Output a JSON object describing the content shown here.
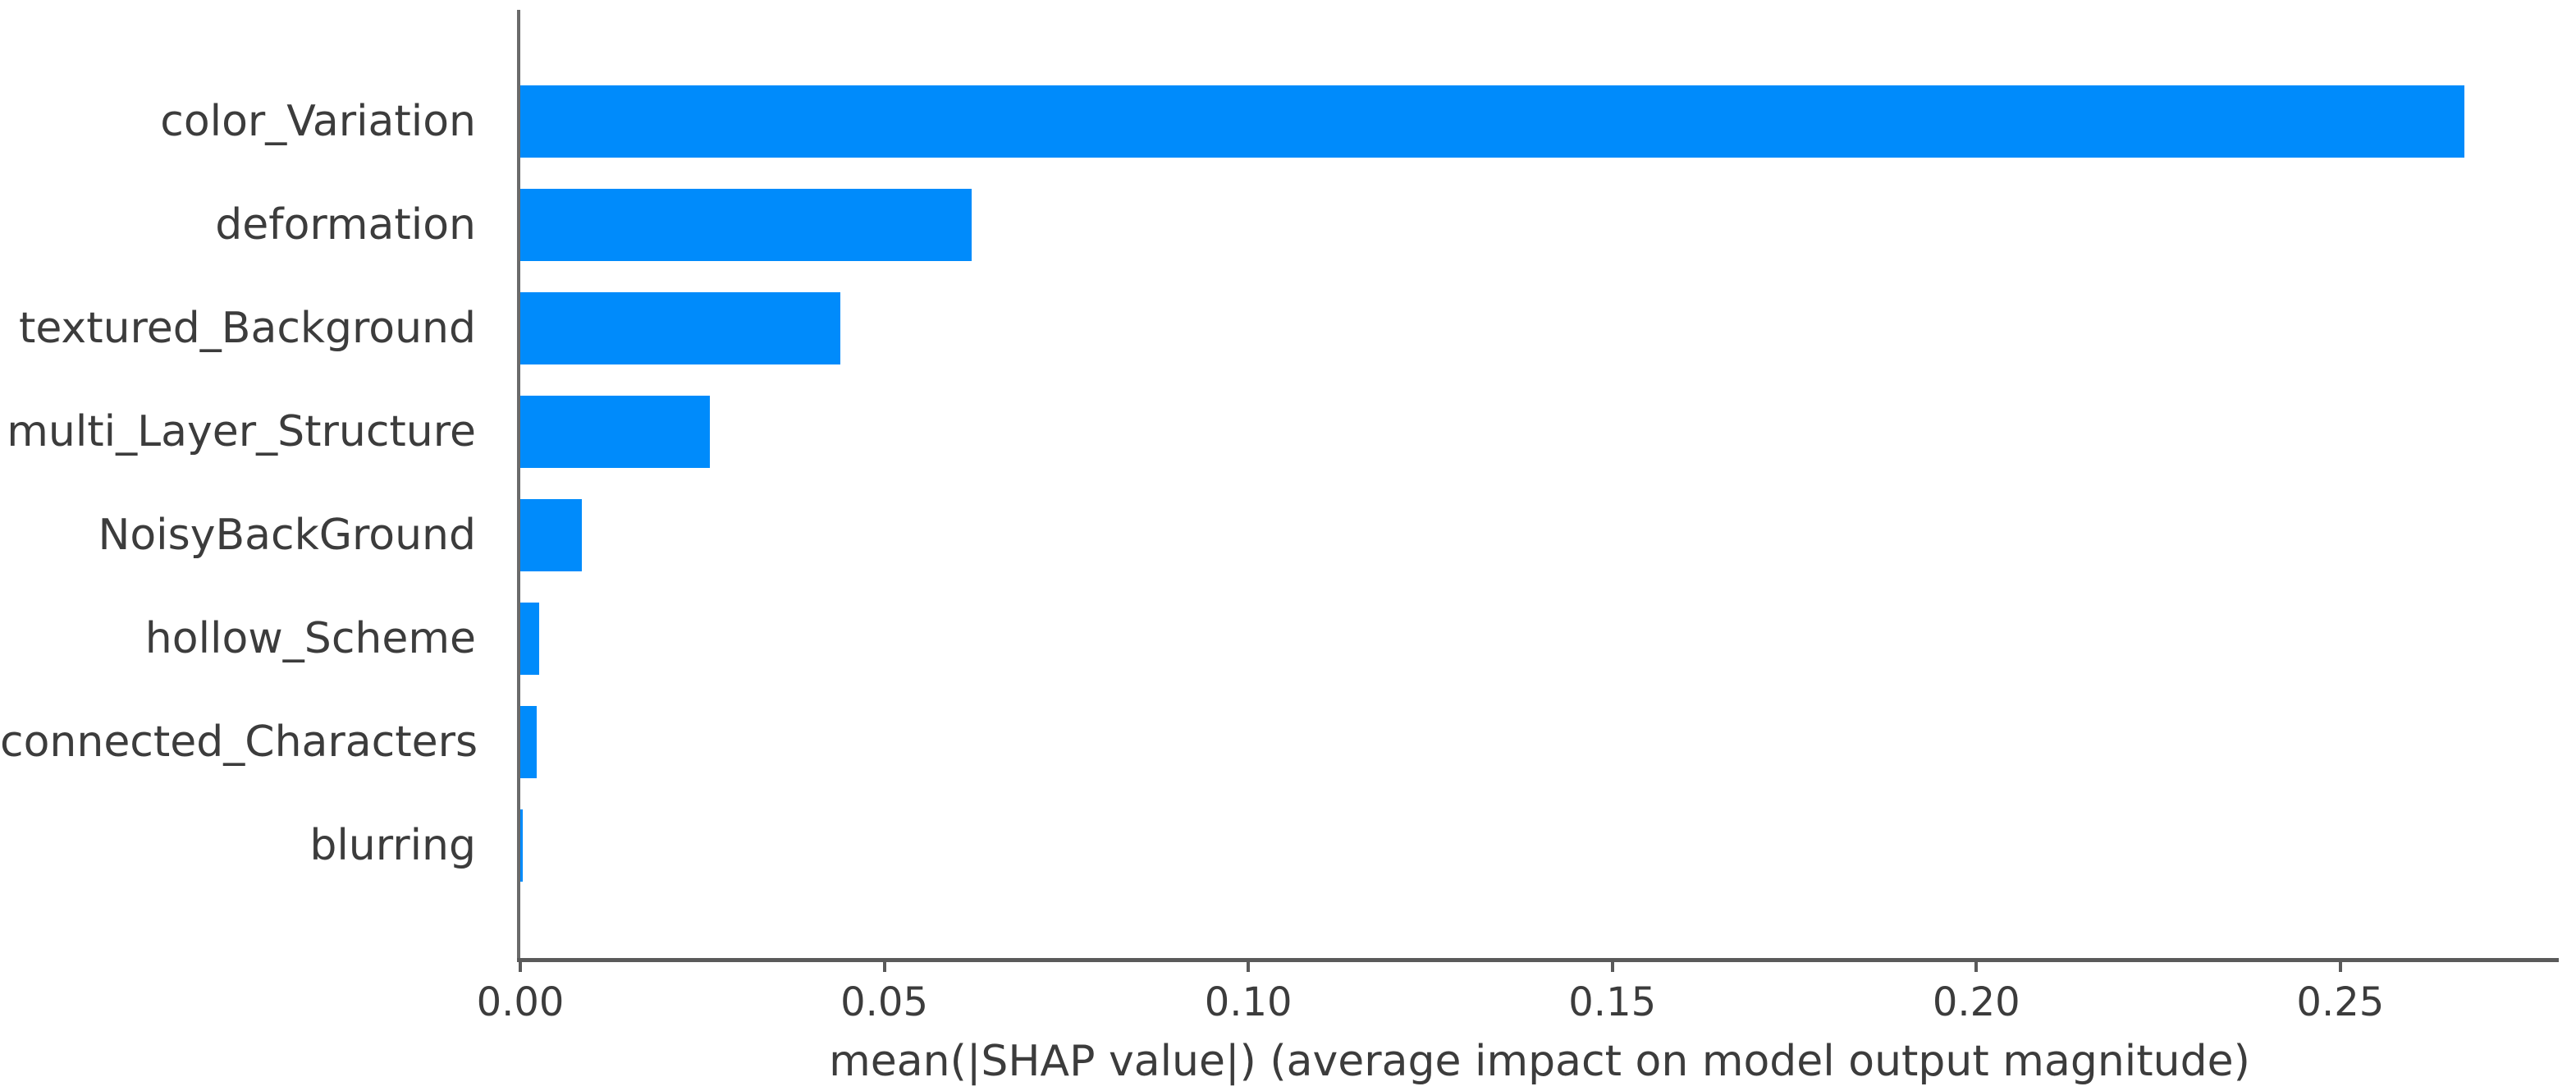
{
  "chart_data": {
    "type": "bar",
    "orientation": "horizontal",
    "title": "",
    "xlabel": "mean(|SHAP value|) (average impact on model output magnitude)",
    "ylabel": "",
    "categories": [
      "color_Variation",
      "deformation",
      "textured_Background",
      "multi_Layer_Structure",
      "NoisyBackGround",
      "hollow_Scheme",
      "connected_Characters",
      "blurring"
    ],
    "values": [
      0.267,
      0.062,
      0.044,
      0.026,
      0.0085,
      0.0026,
      0.0023,
      0.0003
    ],
    "xlim": [
      0,
      0.28
    ],
    "xticks": [
      0,
      0.05,
      0.1,
      0.15,
      0.2,
      0.25
    ],
    "xtick_labels": [
      "0.00",
      "0.05",
      "0.10",
      "0.15",
      "0.20",
      "0.25"
    ],
    "grid": false,
    "legend_position": "none",
    "bar_color": "#008bfb",
    "axis_color": "#5f5f5f",
    "text_color": "#3c3c3c"
  }
}
